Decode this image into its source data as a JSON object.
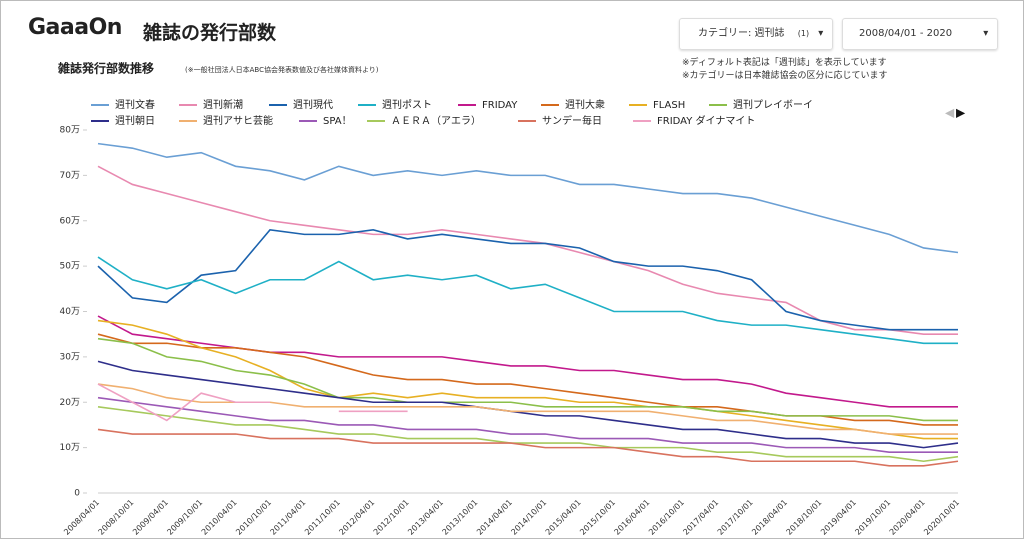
{
  "header": {
    "logo": "GaaaOn",
    "title": "雑誌の発行部数"
  },
  "controls": {
    "category": "カテゴリー: 週刊誌",
    "category_count": "(1)",
    "date_range": "2008/04/01 - 2020"
  },
  "notes": [
    "※ディフォルト表記は「週刊誌」を表示しています",
    "※カテゴリーは日本雑誌協会の区分に応じています"
  ],
  "chart_data": {
    "type": "line",
    "title": "雑誌発行部数推移",
    "subtitle": "(※一般社団法人日本ABC協会発表数値及び各社媒体資料より)",
    "categories": [
      "2008/04/01",
      "2008/10/01",
      "2009/04/01",
      "2009/10/01",
      "2010/04/01",
      "2010/10/01",
      "2011/04/01",
      "2011/10/01",
      "2012/04/01",
      "2012/10/01",
      "2013/04/01",
      "2013/10/01",
      "2014/04/01",
      "2014/10/01",
      "2015/04/01",
      "2015/10/01",
      "2016/04/01",
      "2016/10/01",
      "2017/04/01",
      "2017/10/01",
      "2018/04/01",
      "2018/10/01",
      "2019/04/01",
      "2019/10/01",
      "2020/04/01",
      "2020/10/01"
    ],
    "ylim": [
      0,
      80
    ],
    "yticks": [
      0,
      {
        "value": 10,
        "label": "10万"
      },
      {
        "value": 20,
        "label": "20万"
      },
      {
        "value": 30,
        "label": "30万"
      },
      {
        "value": 40,
        "label": "40万"
      },
      {
        "value": 50,
        "label": "50万"
      },
      {
        "value": 60,
        "label": "60万"
      },
      {
        "value": 70,
        "label": "70万"
      },
      {
        "value": 80,
        "label": "80万"
      }
    ],
    "grid": false,
    "series": [
      {
        "name": "週刊文春",
        "color": "#6a9fd4",
        "values": [
          77,
          76,
          74,
          75,
          72,
          71,
          69,
          72,
          70,
          71,
          70,
          71,
          70,
          70,
          68,
          68,
          67,
          66,
          66,
          65,
          63,
          61,
          59,
          57,
          54,
          53
        ]
      },
      {
        "name": "週刊新潮",
        "color": "#e889b0",
        "values": [
          72,
          68,
          66,
          64,
          62,
          60,
          59,
          58,
          57,
          57,
          58,
          57,
          56,
          55,
          53,
          51,
          49,
          46,
          44,
          43,
          42,
          38,
          36,
          36,
          35,
          35
        ]
      },
      {
        "name": "週刊現代",
        "color": "#1b62ad",
        "values": [
          50,
          43,
          42,
          48,
          49,
          58,
          57,
          57,
          58,
          56,
          57,
          56,
          55,
          55,
          54,
          51,
          50,
          50,
          49,
          47,
          40,
          38,
          37,
          36,
          36,
          36
        ]
      },
      {
        "name": "週刊ポスト",
        "color": "#1fb0c6",
        "values": [
          52,
          47,
          45,
          47,
          44,
          47,
          47,
          51,
          47,
          48,
          47,
          48,
          45,
          46,
          43,
          40,
          40,
          40,
          38,
          37,
          37,
          36,
          35,
          34,
          33,
          33
        ]
      },
      {
        "name": "FRIDAY",
        "color": "#c2198c",
        "values": [
          39,
          35,
          34,
          33,
          32,
          31,
          31,
          30,
          30,
          30,
          30,
          29,
          28,
          28,
          27,
          27,
          26,
          25,
          25,
          24,
          22,
          21,
          20,
          19,
          19,
          19
        ]
      },
      {
        "name": "週刊大衆",
        "color": "#d4691c",
        "values": [
          35,
          33,
          33,
          32,
          32,
          31,
          30,
          28,
          26,
          25,
          25,
          24,
          24,
          23,
          22,
          21,
          20,
          19,
          19,
          18,
          17,
          17,
          16,
          16,
          15,
          15
        ]
      },
      {
        "name": "FLASH",
        "color": "#e7b023",
        "values": [
          38,
          37,
          35,
          32,
          30,
          27,
          23,
          21,
          22,
          21,
          22,
          21,
          21,
          21,
          20,
          20,
          19,
          19,
          18,
          17,
          16,
          15,
          14,
          13,
          12,
          12
        ]
      },
      {
        "name": "週刊プレイボーイ",
        "color": "#8bbf4a",
        "values": [
          34,
          33,
          30,
          29,
          27,
          26,
          24,
          21,
          21,
          20,
          20,
          20,
          20,
          19,
          19,
          19,
          19,
          19,
          18,
          18,
          17,
          17,
          17,
          17,
          16,
          16
        ]
      },
      {
        "name": "週刊朝日",
        "color": "#2e2e8a",
        "values": [
          29,
          27,
          26,
          25,
          24,
          23,
          22,
          21,
          20,
          20,
          20,
          19,
          18,
          17,
          17,
          16,
          15,
          14,
          14,
          13,
          12,
          12,
          11,
          11,
          10,
          11
        ]
      },
      {
        "name": "週刊アサヒ芸能",
        "color": "#f0b070",
        "values": [
          24,
          23,
          21,
          20,
          20,
          20,
          19,
          19,
          19,
          19,
          19,
          19,
          18,
          18,
          18,
          18,
          18,
          17,
          16,
          16,
          15,
          14,
          14,
          13,
          13,
          13
        ]
      },
      {
        "name": "SPA！",
        "color": "#9b59b6",
        "values": [
          21,
          20,
          19,
          18,
          17,
          16,
          16,
          15,
          15,
          14,
          14,
          14,
          13,
          13,
          12,
          12,
          12,
          11,
          11,
          11,
          10,
          10,
          10,
          9,
          9,
          9
        ]
      },
      {
        "name": "ＡＥＲＡ（アエラ）",
        "color": "#a6c95c",
        "values": [
          19,
          18,
          17,
          16,
          15,
          15,
          14,
          13,
          13,
          12,
          12,
          12,
          11,
          11,
          11,
          10,
          10,
          10,
          9,
          9,
          8,
          8,
          8,
          8,
          7,
          8
        ]
      },
      {
        "name": "サンデー毎日",
        "color": "#d8725e",
        "values": [
          14,
          13,
          13,
          13,
          13,
          12,
          12,
          12,
          11,
          11,
          11,
          11,
          11,
          10,
          10,
          10,
          9,
          8,
          8,
          7,
          7,
          7,
          7,
          6,
          6,
          7
        ]
      },
      {
        "name": "FRIDAY ダイナマイト",
        "color": "#efa0c2",
        "values": [
          24,
          20,
          16,
          22,
          20,
          20,
          null,
          18,
          18,
          18,
          null,
          null,
          null,
          null,
          null,
          null,
          null,
          null,
          null,
          null,
          null,
          null,
          null,
          null,
          null,
          null
        ]
      }
    ]
  }
}
